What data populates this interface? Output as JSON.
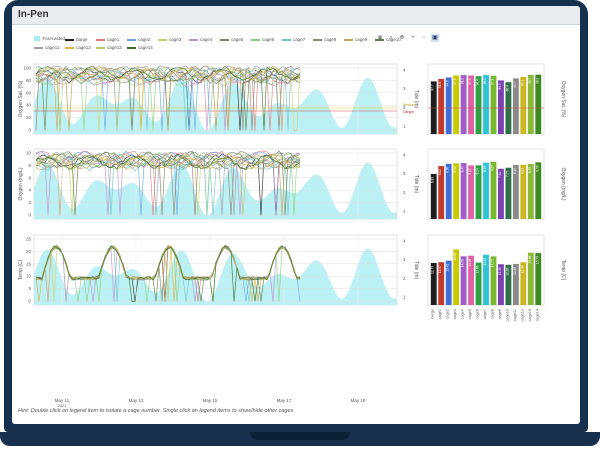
{
  "app": {
    "title": "In-Pen"
  },
  "legend": [
    {
      "name": "Forecasted",
      "color": "#a7ecf0"
    },
    {
      "name": "barge",
      "color": "#222222"
    },
    {
      "name": "cage1",
      "color": "#e07a7a"
    },
    {
      "name": "cage2",
      "color": "#6aa6e6"
    },
    {
      "name": "cage3",
      "color": "#c9d26a"
    },
    {
      "name": "cage4",
      "color": "#c08fd0"
    },
    {
      "name": "cage5",
      "color": "#8c7d6a"
    },
    {
      "name": "cage6",
      "color": "#8ad07a"
    },
    {
      "name": "cage7",
      "color": "#6fc3c9"
    },
    {
      "name": "cage8",
      "color": "#7b8f6a"
    },
    {
      "name": "cage9",
      "color": "#d0a060"
    },
    {
      "name": "cage10",
      "color": "#5d7d4a"
    },
    {
      "name": "cage11",
      "color": "#9aa0a6"
    },
    {
      "name": "cage12",
      "color": "#e0b040"
    },
    {
      "name": "cage13",
      "color": "#b9c96a"
    },
    {
      "name": "cage14",
      "color": "#3b6e2a"
    }
  ],
  "toolbar": [
    "camera-icon",
    "zoom-icon",
    "pan-icon",
    "zoom-in-icon",
    "zoom-out-icon",
    "autoscale-icon"
  ],
  "x_axis": {
    "ticks": [
      "May 11",
      "May 13",
      "May 15",
      "May 17",
      "May 19"
    ],
    "year": "2021"
  },
  "bar_categories": [
    "barge",
    "cage1",
    "cage2",
    "cage3",
    "cage4",
    "cage5",
    "cage6",
    "cage7",
    "cage8",
    "cage9",
    "cage10",
    "cage11",
    "cage12",
    "cage13",
    "cage14"
  ],
  "bar_colors": [
    "#1e1e1e",
    "#c0392b",
    "#3f6fd6",
    "#c9c900",
    "#a25ec7",
    "#e060a8",
    "#2f9e44",
    "#2ec4d6",
    "#78b830",
    "#7a3fb0",
    "#2f6f4a",
    "#8a8a8a",
    "#c9b820",
    "#8ab83a",
    "#3b8a1e"
  ],
  "panels": [
    {
      "name": "oxygen-saturation",
      "ylabel": "Oxygen Sat. (%)",
      "yticks": [
        "100",
        "80",
        "60",
        "40",
        "20",
        "0"
      ],
      "tide_label": "Tide (m)",
      "tide_ticks": [
        "4",
        "3",
        "2",
        "1"
      ],
      "bar_ylabel": "Oxygen Sat. (%)",
      "bar_values": [
        87.7,
        91.8,
        94.3,
        97.5,
        98.2,
        97.5,
        96.4,
        98.2,
        97.1,
        89.3,
        86.4,
        92.7,
        95.1,
        98.7,
        98.9
      ],
      "threshold_labels": [
        "Medium",
        "Danger"
      ]
    },
    {
      "name": "oxygen-concentration",
      "ylabel": "Oxygen (mg/L)",
      "yticks": [
        "10",
        "8",
        "6",
        "4",
        "2",
        "0"
      ],
      "tide_label": "Tide (m)",
      "tide_ticks": [
        "4",
        "3",
        "2",
        "1"
      ],
      "bar_ylabel": "Oxygen (mg/L)",
      "bar_values": [
        6.83,
        8.02,
        8.36,
        8.44,
        8.47,
        8.12,
        8.14,
        8.53,
        8.67,
        7.61,
        7.77,
        8.19,
        8.21,
        8.33,
        8.58
      ]
    },
    {
      "name": "temperature",
      "ylabel": "Temp (C)",
      "yticks": [
        "25",
        "20",
        "15",
        "10",
        "5",
        "0"
      ],
      "tide_label": "Tide (m)",
      "tide_ticks": [
        "4",
        "3",
        "2",
        "1"
      ],
      "bar_ylabel": "Temp (C)",
      "bar_values": [
        12.73,
        12.97,
        13.42,
        16.85,
        14.76,
        14.95,
        12.86,
        15.24,
        14.73,
        12.35,
        12.18,
        12.46,
        12.96,
        15.86,
        15.73
      ]
    }
  ],
  "chart_data": [
    {
      "type": "bar",
      "ylabel": "Oxygen Sat. (%)",
      "categories": [
        "barge",
        "cage1",
        "cage2",
        "cage3",
        "cage4",
        "cage5",
        "cage6",
        "cage7",
        "cage8",
        "cage9",
        "cage10",
        "cage11",
        "cage12",
        "cage13",
        "cage14"
      ],
      "values": [
        87.7,
        91.8,
        94.3,
        97.5,
        98.2,
        97.5,
        96.4,
        98.2,
        97.1,
        89.3,
        86.4,
        92.7,
        95.1,
        98.7,
        98.9
      ]
    },
    {
      "type": "bar",
      "ylabel": "Oxygen (mg/L)",
      "categories": [
        "barge",
        "cage1",
        "cage2",
        "cage3",
        "cage4",
        "cage5",
        "cage6",
        "cage7",
        "cage8",
        "cage9",
        "cage10",
        "cage11",
        "cage12",
        "cage13",
        "cage14"
      ],
      "values": [
        6.83,
        8.02,
        8.36,
        8.44,
        8.47,
        8.12,
        8.14,
        8.53,
        8.67,
        7.61,
        7.77,
        8.19,
        8.21,
        8.33,
        8.58
      ]
    },
    {
      "type": "bar",
      "ylabel": "Temp (C)",
      "categories": [
        "barge",
        "cage1",
        "cage2",
        "cage3",
        "cage4",
        "cage5",
        "cage6",
        "cage7",
        "cage8",
        "cage9",
        "cage10",
        "cage11",
        "cage12",
        "cage13",
        "cage14"
      ],
      "values": [
        12.73,
        12.97,
        13.42,
        16.85,
        14.76,
        14.95,
        12.86,
        15.24,
        14.73,
        12.35,
        12.18,
        12.46,
        12.96,
        15.86,
        15.73
      ]
    }
  ],
  "footer": {
    "hint": "Hint: Double click on legend item to isolate a cage number. Single click on legend items to show/hide other cages."
  }
}
